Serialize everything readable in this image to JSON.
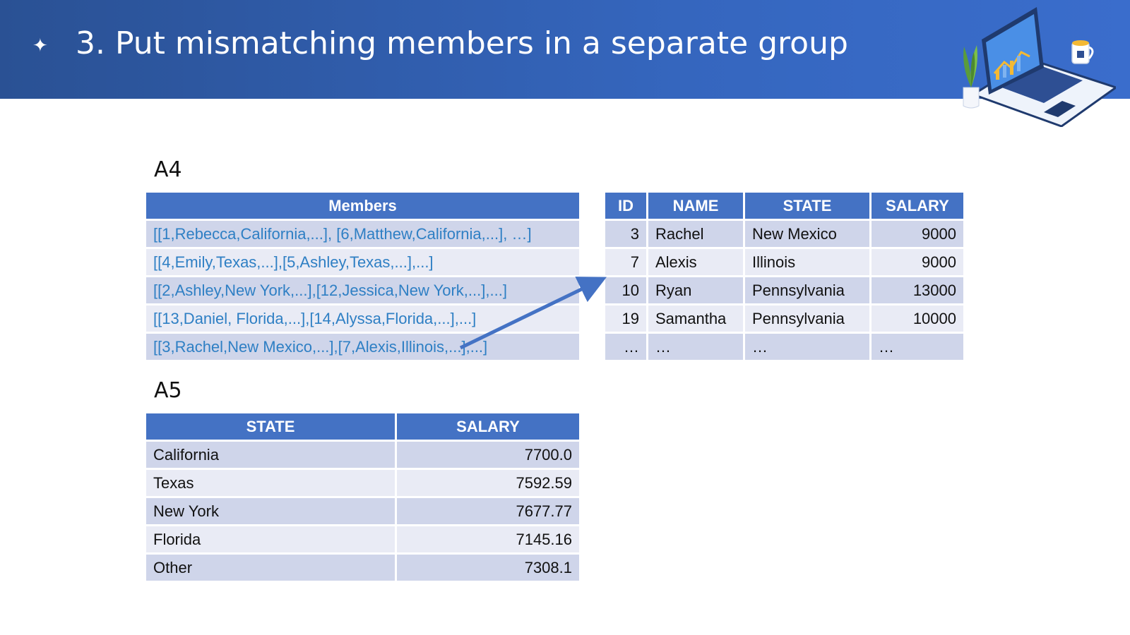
{
  "slide": {
    "bullet": "✦",
    "title": "3. Put mismatching members in a separate group"
  },
  "a4": {
    "label": "A4",
    "header": "Members",
    "rows": [
      "[[1,Rebecca,California,...], [6,Matthew,California,...], …]",
      "[[4,Emily,Texas,...],[5,Ashley,Texas,...],...]",
      "[[2,Ashley,New York,...],[12,Jessica,New York,...],...]",
      "[[13,Daniel, Florida,...],[14,Alyssa,Florida,...],...]",
      "[[3,Rachel,New Mexico,...],[7,Alexis,Illinois,...],...]"
    ]
  },
  "detail": {
    "headers": [
      "ID",
      "NAME",
      "STATE",
      "SALARY"
    ],
    "rows": [
      [
        "3",
        "Rachel",
        "New Mexico",
        "9000"
      ],
      [
        "7",
        "Alexis",
        "Illinois",
        "9000"
      ],
      [
        "10",
        "Ryan",
        "Pennsylvania",
        "13000"
      ],
      [
        "19",
        "Samantha",
        "Pennsylvania",
        "10000"
      ],
      [
        "…",
        "…",
        "…",
        "…"
      ]
    ]
  },
  "a5": {
    "label": "A5",
    "headers": [
      "STATE",
      "SALARY"
    ],
    "rows": [
      [
        "California",
        "7700.0"
      ],
      [
        "Texas",
        "7592.59"
      ],
      [
        "New York",
        "7677.77"
      ],
      [
        "Florida",
        "7145.16"
      ],
      [
        "Other",
        "7308.1"
      ]
    ]
  },
  "colors": {
    "banner": "#3566be",
    "header_fill": "#4472c4",
    "row_dark": "#cfd5ea",
    "row_light": "#e9ebf5",
    "link_text": "#2e7fc4",
    "arrow": "#4472c4"
  },
  "icons": [
    "sparkle-bullet-icon",
    "laptop-illustration",
    "potted-plant-icon",
    "coffee-mug-icon",
    "arrow-connector"
  ]
}
